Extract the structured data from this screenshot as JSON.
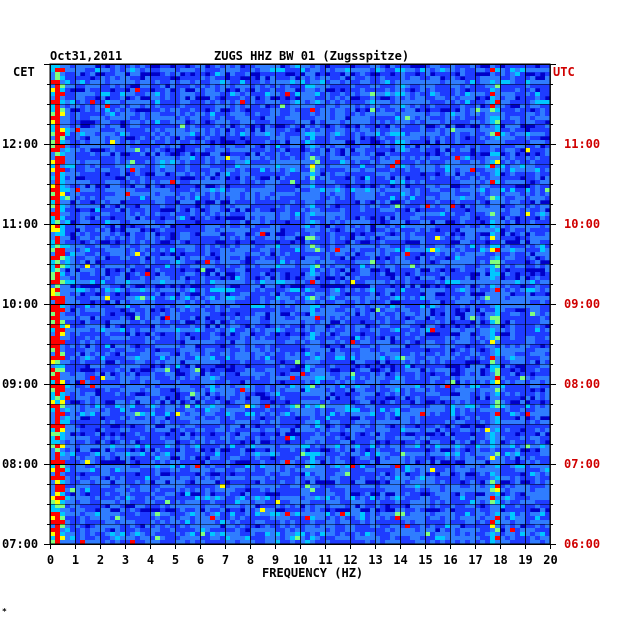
{
  "chart_data": {
    "type": "heatmap",
    "date": "Oct31,2011",
    "station": "ZUGS HHZ BW 01 (Zugsspitze)",
    "xlabel": "FREQUENCY (HZ)",
    "xlim": [
      0,
      20
    ],
    "x_ticks": [
      "0",
      "1",
      "2",
      "3",
      "4",
      "5",
      "6",
      "7",
      "8",
      "9",
      "10",
      "11",
      "12",
      "13",
      "14",
      "15",
      "16",
      "17",
      "18",
      "19",
      "20"
    ],
    "left_axis": {
      "label": "CET",
      "ticks": [
        "12:00",
        "11:00",
        "10:00",
        "09:00",
        "08:00",
        "07:00"
      ],
      "range_hours": [
        7,
        13
      ]
    },
    "right_axis": {
      "label": "UTC",
      "ticks": [
        "11:00",
        "10:00",
        "09:00",
        "08:00",
        "07:00",
        "06:00"
      ],
      "range_hours": [
        6,
        12
      ]
    },
    "notable_features_hz": [
      0.3,
      10.5,
      14,
      17.8
    ],
    "colors": {
      "background": "#0000c8",
      "low": "#1e3cff",
      "mid": "#00c8ff",
      "high": "#ffff00",
      "peak": "#ff0000",
      "utc_text": "#d00000"
    },
    "footnote": "*"
  }
}
